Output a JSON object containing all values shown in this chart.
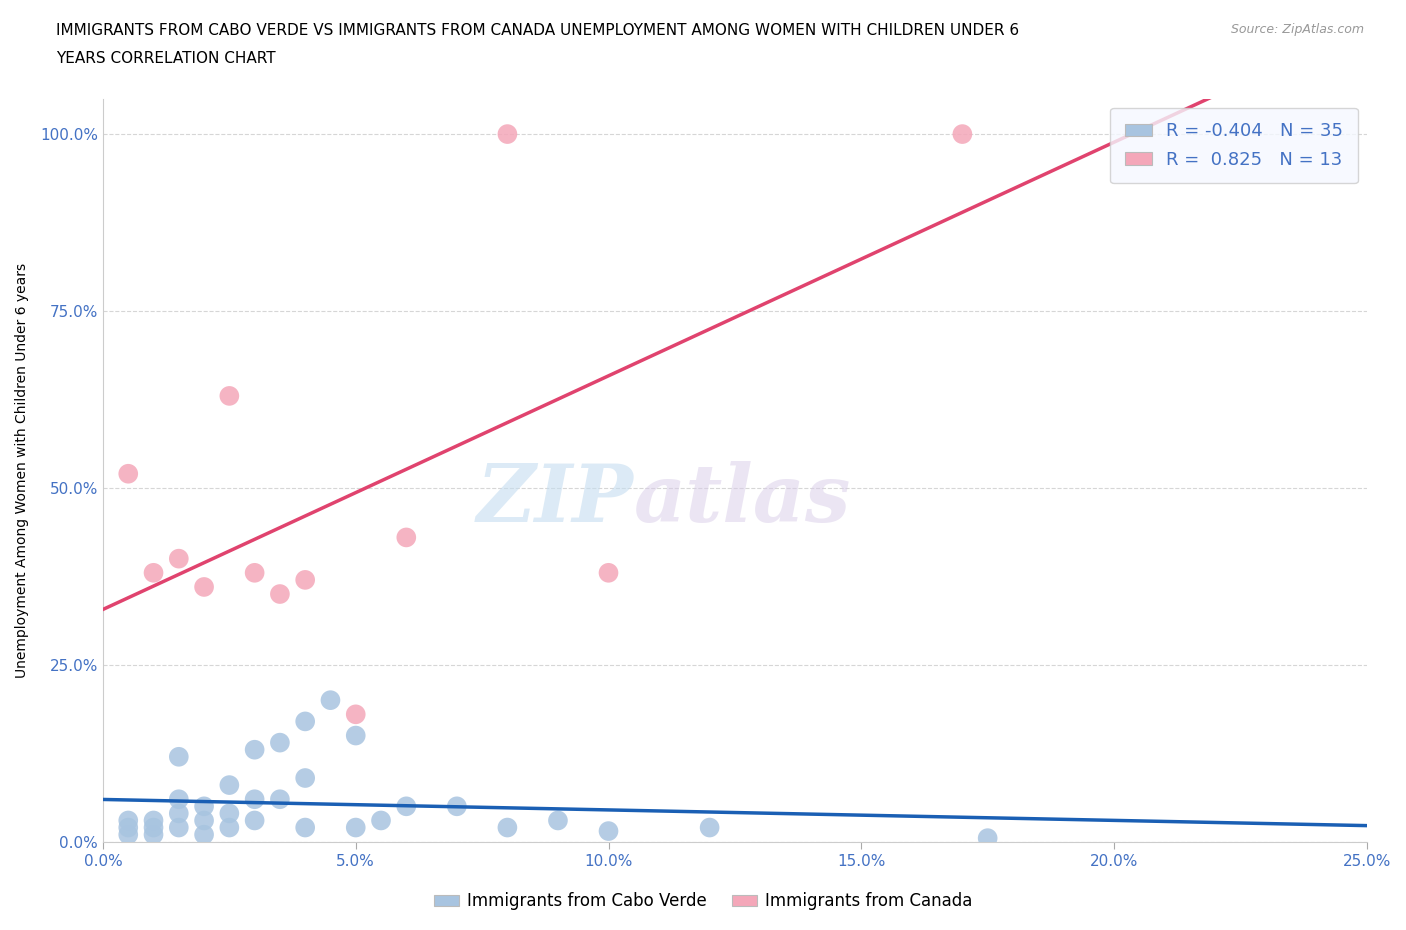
{
  "title_line1": "IMMIGRANTS FROM CABO VERDE VS IMMIGRANTS FROM CANADA UNEMPLOYMENT AMONG WOMEN WITH CHILDREN UNDER 6",
  "title_line2": "YEARS CORRELATION CHART",
  "source": "Source: ZipAtlas.com",
  "ylabel": "Unemployment Among Women with Children Under 6 years",
  "xlim": [
    0.0,
    25.0
  ],
  "ylim": [
    0.0,
    105.0
  ],
  "xticks": [
    0.0,
    5.0,
    10.0,
    15.0,
    20.0,
    25.0
  ],
  "yticks": [
    0.0,
    25.0,
    50.0,
    75.0,
    100.0
  ],
  "ytick_labels": [
    "0.0%",
    "25.0%",
    "50.0%",
    "75.0%",
    "100.0%"
  ],
  "xtick_labels": [
    "0.0%",
    "5.0%",
    "10.0%",
    "15.0%",
    "20.0%",
    "25.0%"
  ],
  "cabo_verde_R": -0.404,
  "cabo_verde_N": 35,
  "canada_R": 0.825,
  "canada_N": 13,
  "cabo_verde_color": "#a8c4e0",
  "canada_color": "#f4a7b9",
  "cabo_verde_line_color": "#1a5fb4",
  "canada_line_color": "#e0436e",
  "legend_box_color": "#f5f8ff",
  "watermark_zip": "ZIP",
  "watermark_atlas": "atlas",
  "cabo_verde_x": [
    0.5,
    0.5,
    0.5,
    1.0,
    1.0,
    1.0,
    1.5,
    1.5,
    1.5,
    1.5,
    2.0,
    2.0,
    2.0,
    2.5,
    2.5,
    2.5,
    3.0,
    3.0,
    3.0,
    3.5,
    3.5,
    4.0,
    4.0,
    4.0,
    4.5,
    5.0,
    5.0,
    5.5,
    6.0,
    7.0,
    8.0,
    9.0,
    10.0,
    12.0,
    17.5
  ],
  "cabo_verde_y": [
    1.0,
    2.0,
    3.0,
    1.0,
    2.0,
    3.0,
    2.0,
    4.0,
    6.0,
    12.0,
    1.0,
    3.0,
    5.0,
    2.0,
    4.0,
    8.0,
    3.0,
    6.0,
    13.0,
    6.0,
    14.0,
    2.0,
    9.0,
    17.0,
    20.0,
    2.0,
    15.0,
    3.0,
    5.0,
    5.0,
    2.0,
    3.0,
    1.5,
    2.0,
    0.5
  ],
  "canada_x": [
    0.5,
    1.0,
    1.5,
    2.0,
    2.5,
    3.0,
    3.5,
    4.0,
    5.0,
    6.0,
    8.0,
    10.0,
    17.0
  ],
  "canada_y": [
    52.0,
    38.0,
    40.0,
    36.0,
    63.0,
    38.0,
    35.0,
    37.0,
    18.0,
    43.0,
    100.0,
    38.0,
    100.0
  ]
}
